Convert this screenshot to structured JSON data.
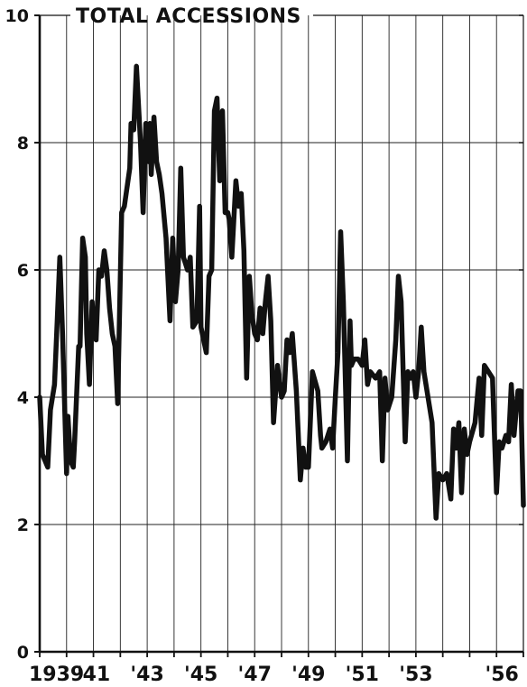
{
  "chart_data": {
    "type": "line",
    "title": "TOTAL ACCESSIONS",
    "xlabel": "",
    "ylabel": "",
    "xlim": [
      1939.0,
      1957.0
    ],
    "ylim": [
      0,
      10
    ],
    "yticks": [
      0,
      2,
      4,
      6,
      8,
      10
    ],
    "ytick_labels": [
      "0",
      "2",
      "4",
      "6",
      "8",
      "10"
    ],
    "xticks": [
      1939,
      1941,
      1943,
      1945,
      1947,
      1949,
      1951,
      1953,
      1956
    ],
    "xtick_labels": [
      "1939",
      "'41",
      "'43",
      "'45",
      "'47",
      "'49",
      "'51",
      "'53",
      "'56"
    ],
    "grid": {
      "horizontal": [
        2,
        4,
        6,
        8
      ],
      "vertical": "yearly"
    },
    "series": [
      {
        "color": "#111111",
        "x": [
          1939.0,
          1939.1,
          1939.2,
          1939.3,
          1939.4,
          1939.55,
          1939.65,
          1939.75,
          1939.85,
          1940.0,
          1940.05,
          1940.15,
          1940.25,
          1940.3,
          1940.45,
          1940.5,
          1940.6,
          1940.7,
          1940.75,
          1940.85,
          1940.95,
          1941.0,
          1941.1,
          1941.2,
          1941.3,
          1941.4,
          1941.5,
          1941.6,
          1941.7,
          1941.8,
          1941.9,
          1942.05,
          1942.15,
          1942.25,
          1942.35,
          1942.4,
          1942.5,
          1942.6,
          1942.7,
          1942.75,
          1942.85,
          1942.95,
          1943.05,
          1943.1,
          1943.15,
          1943.25,
          1943.35,
          1943.45,
          1943.55,
          1943.7,
          1943.85,
          1943.95,
          1944.05,
          1944.15,
          1944.25,
          1944.35,
          1944.5,
          1944.6,
          1944.7,
          1944.85,
          1944.95,
          1945.0,
          1945.05,
          1945.2,
          1945.3,
          1945.4,
          1945.5,
          1945.6,
          1945.7,
          1945.8,
          1945.9,
          1946.0,
          1946.05,
          1946.15,
          1946.25,
          1946.3,
          1946.4,
          1946.5,
          1946.6,
          1946.7,
          1946.8,
          1946.9,
          1947.0,
          1947.1,
          1947.2,
          1947.3,
          1947.4,
          1947.5,
          1947.6,
          1947.7,
          1947.85,
          1948.0,
          1948.1,
          1948.2,
          1948.3,
          1948.4,
          1948.55,
          1948.7,
          1948.8,
          1948.9,
          1949.0,
          1949.15,
          1949.35,
          1949.45,
          1949.5,
          1949.65,
          1949.8,
          1949.9,
          1950.0,
          1950.1,
          1950.2,
          1950.3,
          1950.45,
          1950.55,
          1950.6,
          1950.7,
          1950.85,
          1951.0,
          1951.1,
          1951.2,
          1951.3,
          1951.5,
          1951.65,
          1951.75,
          1951.85,
          1951.95,
          1952.1,
          1952.25,
          1952.35,
          1952.45,
          1952.6,
          1952.7,
          1952.8,
          1952.9,
          1953.0,
          1953.1,
          1953.2,
          1953.3,
          1953.45,
          1953.6,
          1953.75,
          1953.85,
          1954.0,
          1954.15,
          1954.3,
          1954.4,
          1954.5,
          1954.6,
          1954.7,
          1954.8,
          1954.9,
          1955.0,
          1955.2,
          1955.35,
          1955.45,
          1955.55,
          1955.7,
          1955.85,
          1955.9,
          1956.0,
          1956.1,
          1956.2,
          1956.35,
          1956.45,
          1956.55,
          1956.65,
          1956.8,
          1956.9,
          1957.0
        ],
        "y": [
          4.0,
          3.1,
          3.0,
          2.9,
          3.8,
          4.2,
          5.2,
          6.2,
          5.0,
          2.8,
          3.7,
          3.0,
          2.9,
          3.3,
          4.8,
          4.8,
          6.5,
          6.2,
          5.0,
          4.2,
          5.5,
          5.1,
          4.9,
          6.0,
          5.9,
          6.3,
          6.0,
          5.4,
          5.0,
          4.8,
          3.9,
          6.9,
          7.0,
          7.3,
          7.6,
          8.3,
          8.2,
          9.2,
          8.4,
          8.0,
          6.9,
          8.3,
          7.7,
          8.3,
          7.5,
          8.4,
          7.7,
          7.5,
          7.2,
          6.5,
          5.2,
          6.5,
          5.5,
          6.0,
          7.6,
          6.2,
          6.0,
          6.2,
          5.1,
          5.2,
          7.0,
          5.1,
          5.0,
          4.7,
          5.9,
          6.0,
          8.5,
          8.7,
          7.4,
          8.5,
          6.9,
          6.9,
          6.8,
          6.2,
          7.0,
          7.4,
          7.0,
          7.2,
          6.3,
          4.3,
          5.9,
          5.3,
          5.0,
          4.9,
          5.4,
          5.0,
          5.5,
          5.9,
          5.2,
          3.6,
          4.5,
          4.0,
          4.1,
          4.9,
          4.7,
          5.0,
          4.1,
          2.7,
          3.2,
          2.9,
          2.9,
          4.4,
          4.1,
          3.4,
          3.2,
          3.3,
          3.5,
          3.2,
          4.0,
          4.7,
          6.6,
          5.5,
          3.0,
          5.2,
          4.5,
          4.6,
          4.6,
          4.5,
          4.9,
          4.2,
          4.4,
          4.3,
          4.4,
          3.0,
          4.3,
          3.8,
          4.0,
          4.9,
          5.9,
          5.5,
          3.3,
          4.4,
          4.3,
          4.4,
          4.0,
          4.4,
          5.1,
          4.4,
          4.0,
          3.6,
          2.1,
          2.8,
          2.7,
          2.8,
          2.4,
          3.5,
          3.2,
          3.6,
          2.5,
          3.5,
          3.1,
          3.3,
          3.6,
          4.3,
          3.4,
          4.5,
          4.4,
          4.3,
          3.7,
          2.5,
          3.3,
          3.2,
          3.4,
          3.3,
          4.2,
          3.4,
          4.1,
          4.1,
          2.3
        ]
      }
    ]
  }
}
